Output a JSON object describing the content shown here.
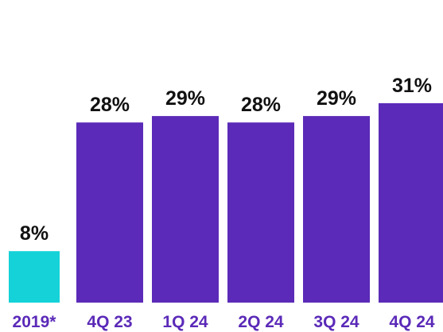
{
  "chart_data": {
    "type": "bar",
    "categories": [
      "2019*",
      "4Q 23",
      "1Q 24",
      "2Q 24",
      "3Q 24",
      "4Q 24"
    ],
    "values": [
      8,
      28,
      29,
      28,
      29,
      31
    ],
    "value_labels": [
      "8%",
      "28%",
      "29%",
      "28%",
      "29%",
      "31%"
    ],
    "colors": [
      "#14d2d8",
      "#5b2ab8",
      "#5b2ab8",
      "#5b2ab8",
      "#5b2ab8",
      "#5b2ab8"
    ]
  }
}
